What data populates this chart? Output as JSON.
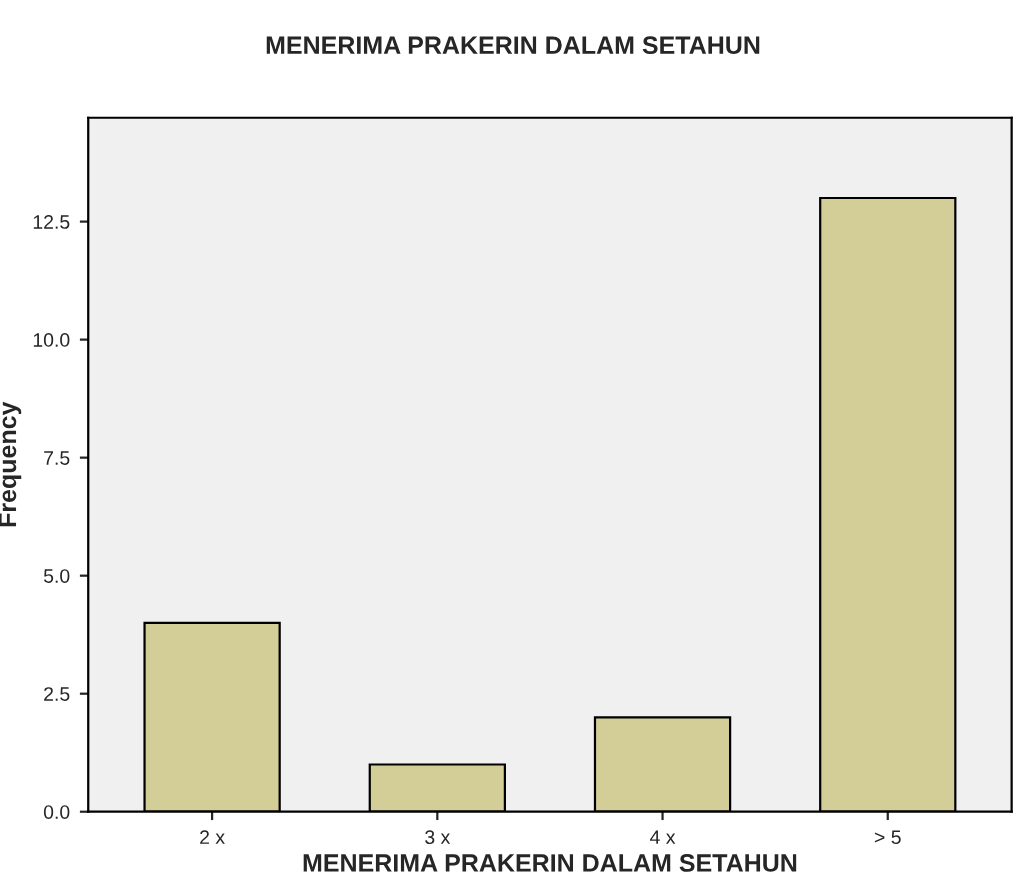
{
  "chart_data": {
    "type": "bar",
    "title": "MENERIMA PRAKERIN DALAM SETAHUN",
    "xlabel": "MENERIMA PRAKERIN DALAM SETAHUN",
    "ylabel": "Frequency",
    "categories": [
      "2 x",
      "3 x",
      "4 x",
      "> 5"
    ],
    "values": [
      4,
      1,
      2,
      13
    ],
    "color": "#d3ce98",
    "ylim": [
      0,
      14.7
    ],
    "yticks": [
      {
        "value": 0,
        "label": "0.0"
      },
      {
        "value": 2.5,
        "label": "2.5"
      },
      {
        "value": 5,
        "label": "5.0"
      },
      {
        "value": 7.5,
        "label": "7.5"
      },
      {
        "value": 10,
        "label": "10.0"
      },
      {
        "value": 12.5,
        "label": "12.5"
      }
    ],
    "grid": false
  }
}
